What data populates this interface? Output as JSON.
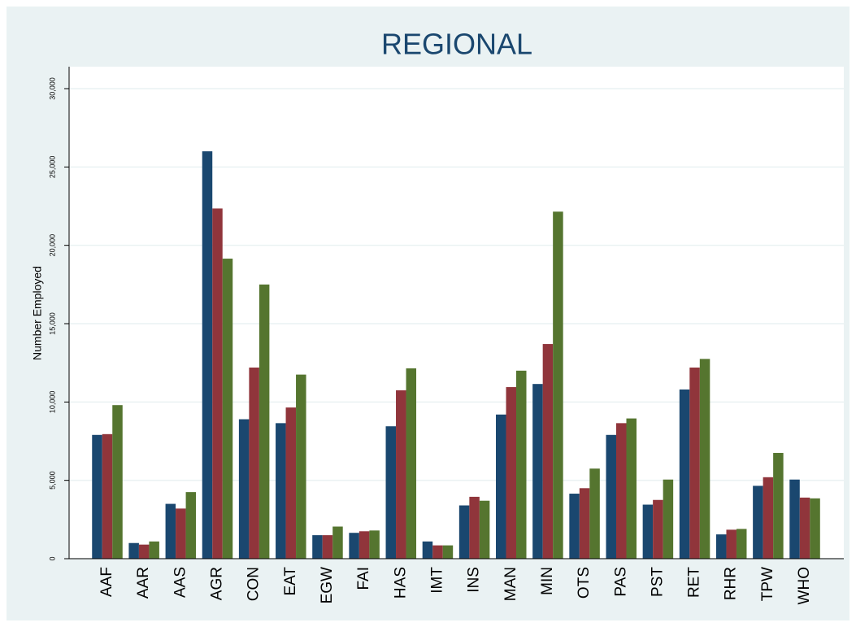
{
  "chart_data": {
    "type": "bar",
    "title": "REGIONAL",
    "y_label": "Number Employed",
    "categories": [
      "AAF",
      "AAR",
      "AAS",
      "AGR",
      "CON",
      "EAT",
      "EGW",
      "FAI",
      "HAS",
      "IMT",
      "INS",
      "MAN",
      "MIN",
      "OTS",
      "PAS",
      "PST",
      "RET",
      "RHR",
      "TPW",
      "WHO"
    ],
    "series": [
      {
        "color": "#1a476f",
        "values": [
          7900,
          1000,
          3500,
          26000,
          8900,
          8650,
          1500,
          1650,
          8450,
          1100,
          3400,
          9200,
          11150,
          4150,
          7900,
          3450,
          10800,
          1550,
          4650,
          5050
        ]
      },
      {
        "color": "#90353b",
        "values": [
          7950,
          900,
          3200,
          22350,
          12200,
          9650,
          1500,
          1750,
          10750,
          850,
          3950,
          10950,
          13700,
          4500,
          8650,
          3750,
          12200,
          1850,
          5200,
          3900
        ]
      },
      {
        "color": "#55752f",
        "values": [
          9800,
          1100,
          4250,
          19150,
          17500,
          11750,
          2050,
          1800,
          12150,
          850,
          3700,
          12000,
          22150,
          5750,
          8950,
          5050,
          12750,
          1900,
          6750,
          3850
        ]
      }
    ],
    "ylim": [
      0,
      30000
    ],
    "yticks": [
      0,
      {
        "value": 5000,
        "label": "5,000"
      },
      {
        "value": 10000,
        "label": "10,000"
      },
      {
        "value": 15000,
        "label": "15,000"
      },
      {
        "value": 20000,
        "label": "20,000"
      },
      {
        "value": 25000,
        "label": "25,000"
      },
      {
        "value": 30000,
        "label": "30,000"
      }
    ],
    "grid": true
  }
}
